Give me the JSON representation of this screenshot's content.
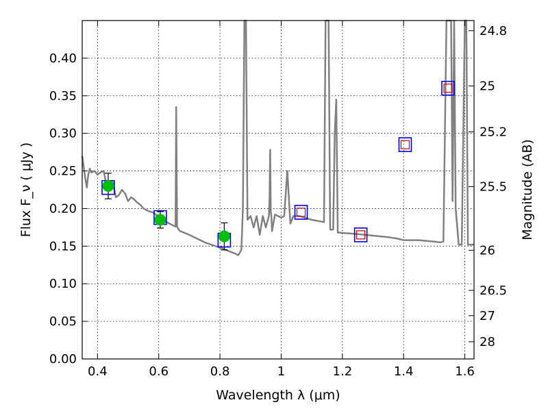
{
  "chart_data": {
    "type": "scatter",
    "xlabel": "Wavelength  λ (μm)",
    "ylabel": "Flux  F_ν  ( μJy )",
    "ylabel_right": "Magnitude (AB)",
    "xlim": [
      0.35,
      1.63
    ],
    "ylim": [
      0.0,
      0.45
    ],
    "grid": true,
    "x_ticks": [
      0.4,
      0.6,
      0.8,
      1.0,
      1.2,
      1.4,
      1.6
    ],
    "x_tick_labels": [
      "0.4",
      "0.6",
      "0.8",
      "1",
      "1.2",
      "1.4",
      "1.6"
    ],
    "y_ticks": [
      0.0,
      0.05,
      0.1,
      0.15,
      0.2,
      0.25,
      0.3,
      0.35,
      0.4
    ],
    "y_tick_labels": [
      "0.00",
      "0.05",
      "0.10",
      "0.15",
      "0.20",
      "0.25",
      "0.30",
      "0.35",
      "0.40"
    ],
    "mag_ticks": [
      24.8,
      25.0,
      25.2,
      25.5,
      26.0,
      26.5,
      27.0,
      28.0
    ],
    "mag_tick_labels": [
      "24.8",
      "25",
      "25.2",
      "25.5",
      "26",
      "26.5",
      "27",
      "28"
    ],
    "series": [
      {
        "kind": "model-spectrum",
        "color": "#808080",
        "x": [
          0.35,
          0.355,
          0.36,
          0.365,
          0.37,
          0.375,
          0.38,
          0.39,
          0.4,
          0.41,
          0.42,
          0.43,
          0.44,
          0.45,
          0.46,
          0.47,
          0.48,
          0.49,
          0.5,
          0.51,
          0.52,
          0.53,
          0.54,
          0.55,
          0.56,
          0.57,
          0.58,
          0.59,
          0.6,
          0.61,
          0.62,
          0.63,
          0.64,
          0.65,
          0.655,
          0.657,
          0.66,
          0.665,
          0.67,
          0.7,
          0.75,
          0.8,
          0.85,
          0.86,
          0.87,
          0.875,
          0.88,
          0.885,
          0.89,
          0.9,
          0.91,
          0.92,
          0.93,
          0.94,
          0.95,
          0.96,
          0.962,
          0.964,
          0.966,
          0.968,
          0.97,
          0.98,
          1.0,
          1.01,
          1.02,
          1.03,
          1.04,
          1.06,
          1.1,
          1.14,
          1.145,
          1.15,
          1.155,
          1.16,
          1.17,
          1.175,
          1.18,
          1.185,
          1.19,
          1.25,
          1.3,
          1.35,
          1.38,
          1.4,
          1.45,
          1.5,
          1.52,
          1.53,
          1.54,
          1.55,
          1.555,
          1.56,
          1.565,
          1.57,
          1.58,
          1.59,
          1.6,
          1.605,
          1.61,
          1.63
        ],
        "y": [
          0.27,
          0.255,
          0.24,
          0.228,
          0.245,
          0.253,
          0.248,
          0.25,
          0.245,
          0.248,
          0.25,
          0.23,
          0.225,
          0.235,
          0.215,
          0.218,
          0.225,
          0.22,
          0.21,
          0.215,
          0.212,
          0.208,
          0.205,
          0.2,
          0.198,
          0.196,
          0.195,
          0.192,
          0.19,
          0.185,
          0.183,
          0.181,
          0.179,
          0.177,
          0.176,
          0.335,
          0.176,
          0.172,
          0.17,
          0.165,
          0.155,
          0.148,
          0.14,
          0.138,
          0.145,
          0.2,
          0.45,
          0.45,
          0.185,
          0.19,
          0.175,
          0.19,
          0.165,
          0.19,
          0.175,
          0.19,
          0.215,
          0.278,
          0.195,
          0.19,
          0.17,
          0.192,
          0.188,
          0.19,
          0.25,
          0.18,
          0.19,
          0.19,
          0.185,
          0.182,
          0.45,
          0.45,
          0.45,
          0.172,
          0.172,
          0.3,
          0.345,
          0.168,
          0.168,
          0.166,
          0.164,
          0.162,
          0.16,
          0.158,
          0.158,
          0.156,
          0.155,
          0.156,
          0.45,
          0.45,
          0.45,
          0.21,
          0.45,
          0.2,
          0.152,
          0.152,
          0.45,
          0.45,
          0.152,
          0.152
        ]
      },
      {
        "kind": "observed-photometry",
        "color": "#00bf00",
        "x": [
          0.435,
          0.605,
          0.814
        ],
        "y": [
          0.23,
          0.185,
          0.163
        ],
        "yerr": [
          0.017,
          0.011,
          0.018
        ]
      },
      {
        "kind": "model-photometry",
        "color": "#0000ff",
        "x": [
          0.435,
          0.605,
          0.814,
          1.065,
          1.26,
          1.405,
          1.545
        ],
        "y": [
          0.228,
          0.188,
          0.158,
          0.195,
          0.165,
          0.285,
          0.36
        ]
      },
      {
        "kind": "band-measurement",
        "color": "#cc0000",
        "x": [
          1.065,
          1.26,
          1.405,
          1.545
        ],
        "y": [
          0.195,
          0.165,
          0.285,
          0.36
        ]
      }
    ]
  }
}
